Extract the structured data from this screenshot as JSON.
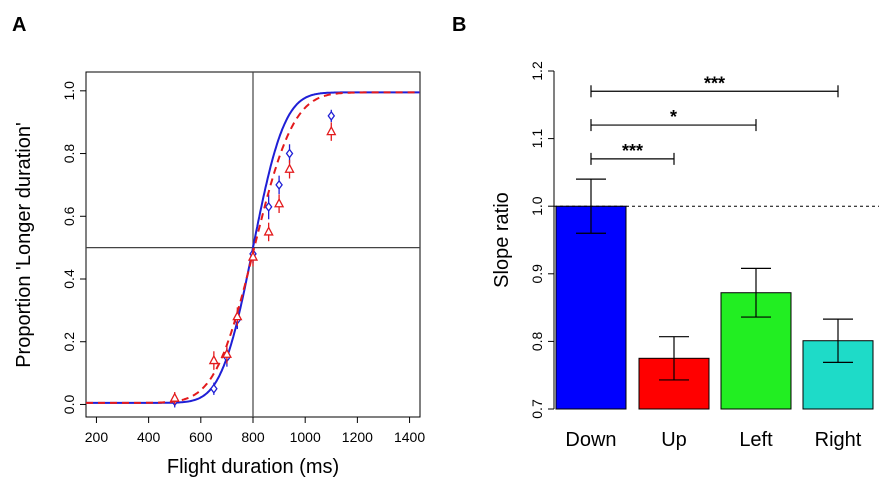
{
  "chart_data": [
    {
      "panel": "A",
      "type": "line",
      "xlabel": "Flight duration (ms)",
      "ylabel": "Proportion 'Longer duration'",
      "xlim": [
        160,
        1440
      ],
      "ylim": [
        -0.04,
        1.06
      ],
      "x_ticks": [
        200,
        400,
        600,
        800,
        1000,
        1200,
        1400
      ],
      "x_tick_labels": [
        "200",
        "400",
        "600",
        "800",
        "1000",
        "1200",
        "1400"
      ],
      "y_ticks": [
        0.0,
        0.2,
        0.4,
        0.6,
        0.8,
        1.0
      ],
      "y_tick_labels": [
        "0.0",
        "0.2",
        "0.4",
        "0.6",
        "0.8",
        "1.0"
      ],
      "reference_lines": {
        "x": 800,
        "y": 0.5
      },
      "series": [
        {
          "name": "blue",
          "color": "#1f1fd6",
          "line_style": "solid",
          "marker": "diamond",
          "points": [
            {
              "x": 500,
              "y": 0.01,
              "err": 0.01
            },
            {
              "x": 650,
              "y": 0.05,
              "err": 0.01
            },
            {
              "x": 700,
              "y": 0.15,
              "err": 0.02
            },
            {
              "x": 740,
              "y": 0.27,
              "err": 0.02
            },
            {
              "x": 800,
              "y": 0.48,
              "err": 0.02
            },
            {
              "x": 860,
              "y": 0.63,
              "err": 0.03
            },
            {
              "x": 900,
              "y": 0.7,
              "err": 0.02
            },
            {
              "x": 940,
              "y": 0.8,
              "err": 0.02
            },
            {
              "x": 1100,
              "y": 0.92,
              "err": 0.01
            }
          ],
          "fit": {
            "model": "cumulative_gaussian",
            "mu": 800,
            "sigma": 95,
            "floor": 0.005,
            "ceiling": 0.995
          }
        },
        {
          "name": "red",
          "color": "#e31a1c",
          "line_style": "dashed",
          "marker": "triangle",
          "points": [
            {
              "x": 500,
              "y": 0.02,
              "err": 0.01
            },
            {
              "x": 650,
              "y": 0.14,
              "err": 0.02
            },
            {
              "x": 700,
              "y": 0.16,
              "err": 0.02
            },
            {
              "x": 740,
              "y": 0.28,
              "err": 0.02
            },
            {
              "x": 800,
              "y": 0.47,
              "err": 0.02
            },
            {
              "x": 860,
              "y": 0.55,
              "err": 0.02
            },
            {
              "x": 900,
              "y": 0.64,
              "err": 0.02
            },
            {
              "x": 940,
              "y": 0.75,
              "err": 0.02
            },
            {
              "x": 1100,
              "y": 0.87,
              "err": 0.02
            }
          ],
          "fit": {
            "model": "cumulative_gaussian",
            "mu": 805,
            "sigma": 118,
            "floor": 0.005,
            "ceiling": 0.995
          }
        }
      ]
    },
    {
      "panel": "B",
      "type": "bar",
      "categories": [
        "Down",
        "Up",
        "Left",
        "Right"
      ],
      "values": [
        1.0,
        0.775,
        0.872,
        0.801
      ],
      "errors": [
        0.04,
        0.032,
        0.036,
        0.032
      ],
      "colors": [
        "#0000ff",
        "#ff0000",
        "#22ee22",
        "#1edbc8"
      ],
      "ylabel": "Slope ratio",
      "xlabel": "",
      "ylim": [
        0.7,
        1.2
      ],
      "y_ticks": [
        0.7,
        0.8,
        0.9,
        1.0,
        1.1,
        1.2
      ],
      "y_tick_labels": [
        "0.7",
        "0.8",
        "0.9",
        "1.0",
        "1.1",
        "1.2"
      ],
      "reference_line": {
        "y": 1.0,
        "style": "dashed"
      },
      "significance": [
        {
          "from": "Down",
          "to": "Up",
          "y": 1.07,
          "label": "***"
        },
        {
          "from": "Down",
          "to": "Left",
          "y": 1.12,
          "label": "*"
        },
        {
          "from": "Down",
          "to": "Right",
          "y": 1.17,
          "label": "***"
        }
      ]
    }
  ]
}
